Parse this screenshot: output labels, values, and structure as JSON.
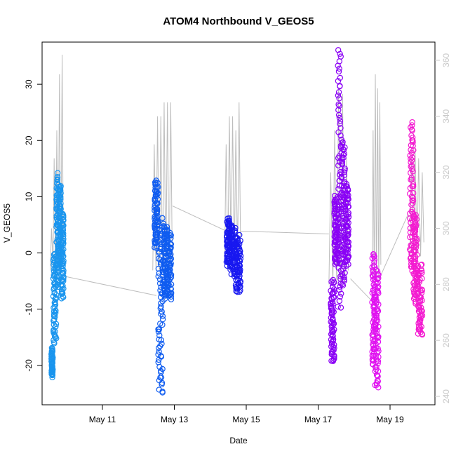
{
  "chart_data": {
    "type": "scatter",
    "title": "ATOM4 Northbound V_GEOS5",
    "xlabel": "Date",
    "ylabel": "V_GEOS5",
    "x_ticks": [
      "May 11",
      "May 13",
      "May 15",
      "May 17",
      "May 19"
    ],
    "y_ticks": [
      "-20",
      "-10",
      "0",
      "10",
      "20",
      "30"
    ],
    "y2_ticks": [
      "240",
      "260",
      "280",
      "300",
      "320",
      "340",
      "360"
    ],
    "ylim": [
      -27,
      37.5
    ],
    "y2lim": [
      237,
      366.5
    ],
    "xlim_days": [
      9.75,
      20.25
    ],
    "secondary_axis_color": "#c8c8c8",
    "secondary_line_color": "#bdbdbd",
    "grid": false,
    "legend": "none",
    "series": [
      {
        "color": "#1a95ee",
        "day_start": 9.58,
        "day_end": 9.92,
        "y_min": -22,
        "y_max": 14,
        "clusters": [
          [
            9.58,
            9.62,
            -22,
            -17
          ],
          [
            9.63,
            9.72,
            -16,
            0
          ],
          [
            9.72,
            9.78,
            -6,
            14
          ],
          [
            9.78,
            9.85,
            -2,
            12
          ],
          [
            9.85,
            9.92,
            -8,
            7
          ]
        ]
      },
      {
        "color": "#0f5cf0",
        "day_start": 12.45,
        "day_end": 12.92,
        "y_min": -25,
        "y_max": 13,
        "clusters": [
          [
            12.45,
            12.55,
            1,
            13
          ],
          [
            12.55,
            12.68,
            -25,
            6
          ],
          [
            12.68,
            12.8,
            -8,
            5
          ],
          [
            12.8,
            12.92,
            -8,
            4
          ]
        ]
      },
      {
        "color": "#1818f0",
        "day_start": 14.45,
        "day_end": 14.85,
        "y_min": -7,
        "y_max": 6,
        "clusters": [
          [
            14.45,
            14.55,
            -2,
            6
          ],
          [
            14.55,
            14.7,
            -4,
            5
          ],
          [
            14.7,
            14.85,
            -7,
            3
          ]
        ]
      },
      {
        "color": "#8a00f5",
        "day_start": 17.35,
        "day_end": 17.85,
        "y_min": -19.5,
        "y_max": 36,
        "clusters": [
          [
            17.35,
            17.45,
            -19.5,
            -5
          ],
          [
            17.45,
            17.55,
            -2,
            10
          ],
          [
            17.55,
            17.65,
            -10,
            36
          ],
          [
            17.65,
            17.75,
            -6,
            20
          ],
          [
            17.75,
            17.85,
            -2,
            12
          ]
        ]
      },
      {
        "color": "#e012f0",
        "day_start": 18.5,
        "day_end": 18.68,
        "y_min": -24,
        "y_max": 0,
        "clusters": [
          [
            18.5,
            18.58,
            -20,
            0
          ],
          [
            18.58,
            18.68,
            -24,
            -3
          ]
        ]
      },
      {
        "color": "#f31bd0",
        "day_start": 19.55,
        "day_end": 19.9,
        "y_min": -14.5,
        "y_max": 23,
        "clusters": [
          [
            19.55,
            19.65,
            -3,
            23
          ],
          [
            19.65,
            19.75,
            -9,
            7
          ],
          [
            19.75,
            19.9,
            -14.5,
            -2
          ]
        ]
      }
    ],
    "secondary_series": {
      "note_units": "right-axis units",
      "flight_spikes": [
        {
          "day_start": 9.55,
          "day_end": 9.92,
          "base": 285,
          "peaks": [
            300,
            325,
            335,
            355,
            362
          ]
        },
        {
          "day_start": 12.4,
          "day_end": 12.95,
          "base": 285,
          "peaks": [
            330,
            340,
            340,
            345,
            345,
            345
          ]
        },
        {
          "day_start": 14.4,
          "day_end": 14.85,
          "base": 290,
          "peaks": [
            330,
            340,
            340,
            335,
            345
          ]
        },
        {
          "day_start": 17.3,
          "day_end": 17.85,
          "base": 280,
          "peaks": [
            320,
            335,
            350,
            348,
            325
          ]
        },
        {
          "day_start": 18.5,
          "day_end": 18.75,
          "base": 282,
          "peaks": [
            335,
            355,
            350,
            345
          ]
        },
        {
          "day_start": 19.55,
          "day_end": 19.95,
          "base": 290,
          "peaks": [
            325,
            330,
            325,
            320
          ]
        }
      ],
      "transits": [
        [
          [
            9.9,
            283
          ],
          [
            12.5,
            276
          ]
        ],
        [
          [
            12.95,
            308
          ],
          [
            14.45,
            299
          ]
        ],
        [
          [
            14.85,
            299
          ],
          [
            17.3,
            298
          ]
        ],
        [
          [
            17.9,
            282
          ],
          [
            18.5,
            274
          ]
        ],
        [
          [
            18.7,
            282
          ],
          [
            19.5,
            305
          ]
        ]
      ]
    }
  }
}
